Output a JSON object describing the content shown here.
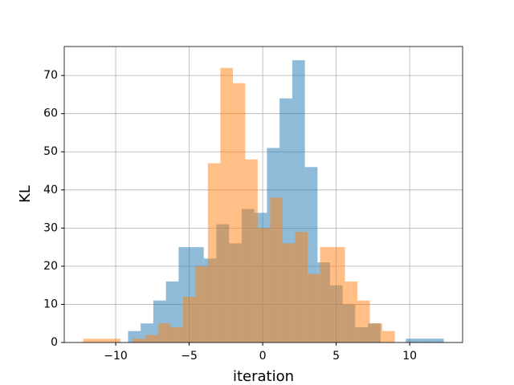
{
  "chart_data": {
    "type": "histogram",
    "x_label": "iteration",
    "y_label": "KL",
    "series": [
      {
        "color": "#1f77b4",
        "alpha": 0.5,
        "bins": [
          -9.16,
          -8.3,
          -7.44,
          -6.58,
          -5.72,
          -4.87,
          -4.01,
          -3.15,
          -2.29,
          -1.43,
          -0.57,
          0.29,
          1.15,
          2.01,
          2.87,
          3.73,
          4.58,
          5.44,
          6.3,
          7.16,
          8.02,
          8.88,
          9.74,
          10.6,
          11.46,
          12.32
        ],
        "values": [
          3,
          5,
          11,
          16,
          25,
          25,
          22,
          31,
          26,
          35,
          34,
          51,
          64,
          74,
          46,
          21,
          15,
          10,
          4,
          5,
          0,
          0,
          1,
          1,
          1
        ]
      },
      {
        "color": "#ff7f0e",
        "alpha": 0.5,
        "bins": [
          -12.21,
          -11.36,
          -10.51,
          -9.67,
          -8.82,
          -7.97,
          -7.12,
          -6.27,
          -5.43,
          -4.58,
          -3.73,
          -2.88,
          -2.03,
          -1.19,
          -0.34,
          0.51,
          1.36,
          2.21,
          3.05,
          3.9,
          4.75,
          5.6,
          6.45,
          7.29,
          8.14,
          8.99
        ],
        "values": [
          1,
          1,
          1,
          0,
          1,
          2,
          5,
          4,
          12,
          20,
          47,
          72,
          68,
          48,
          30,
          38,
          26,
          29,
          18,
          25,
          25,
          16,
          11,
          5,
          3
        ]
      }
    ],
    "xlim": [
      -13.5,
      13.6
    ],
    "ylim": [
      0,
      77.6
    ],
    "xticks": [
      {
        "value": -10,
        "label": "−10"
      },
      {
        "value": -5,
        "label": "−5"
      },
      0,
      5,
      10
    ],
    "yticks": [
      0,
      10,
      20,
      30,
      40,
      50,
      60,
      70
    ],
    "grid": true
  }
}
